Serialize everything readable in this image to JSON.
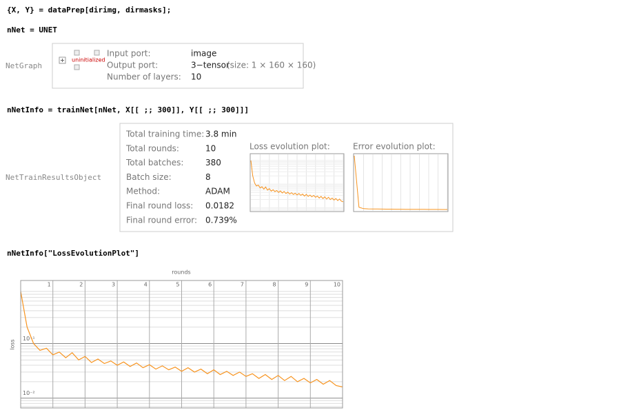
{
  "cells": [
    "{X, Y} = dataPrep[dirimg, dirmasks];",
    "nNet = UNET",
    "nNetInfo = trainNet[nNet, X[[ ;; 300]], Y[[ ;; 300]]]",
    "nNetInfo[\"LossEvolutionPlot\"]"
  ],
  "netgraph": {
    "head": "NetGraph",
    "badge": "uninitialized",
    "rows": [
      [
        "Input port:",
        "image"
      ],
      [
        "Output port:",
        "3−tensor",
        "(size: 1 × 160 × 160)"
      ],
      [
        "Number of layers:",
        "10"
      ]
    ]
  },
  "train_results": {
    "head": "NetTrainResultsObject",
    "rows": [
      [
        "Total training time:",
        "3.8 min"
      ],
      [
        "Total rounds:",
        "10"
      ],
      [
        "Total batches:",
        "380"
      ],
      [
        "Batch size:",
        "8"
      ],
      [
        "Method:",
        "ADAM"
      ],
      [
        "Final round loss:",
        "0.0182"
      ],
      [
        "Final round error:",
        "0.739%"
      ]
    ],
    "loss_plot_title": "Loss evolution plot:",
    "error_plot_title": "Error evolution plot:"
  },
  "chart_data": [
    {
      "type": "line",
      "x_label": "rounds",
      "y_label": "loss",
      "color": "#f7931e",
      "log_y": true,
      "grid": true,
      "x": [
        0,
        0.2,
        0.4,
        0.6,
        0.8,
        1,
        1.2,
        1.4,
        1.6,
        1.8,
        2,
        2.2,
        2.4,
        2.6,
        2.8,
        3,
        3.2,
        3.4,
        3.6,
        3.8,
        4,
        4.2,
        4.4,
        4.6,
        4.8,
        5,
        5.2,
        5.4,
        5.6,
        5.8,
        6,
        6.2,
        6.4,
        6.6,
        6.8,
        7,
        7.2,
        7.4,
        7.6,
        7.8,
        8,
        8.2,
        8.4,
        8.6,
        8.8,
        9,
        9.2,
        9.4,
        9.6,
        9.8,
        10
      ],
      "values": [
        0.9,
        0.2,
        0.1,
        0.075,
        0.082,
        0.062,
        0.07,
        0.055,
        0.068,
        0.05,
        0.058,
        0.045,
        0.052,
        0.043,
        0.048,
        0.04,
        0.046,
        0.038,
        0.044,
        0.036,
        0.041,
        0.034,
        0.039,
        0.033,
        0.037,
        0.031,
        0.036,
        0.03,
        0.034,
        0.028,
        0.033,
        0.027,
        0.031,
        0.026,
        0.03,
        0.025,
        0.028,
        0.023,
        0.027,
        0.022,
        0.026,
        0.021,
        0.025,
        0.02,
        0.023,
        0.019,
        0.022,
        0.018,
        0.021,
        0.017,
        0.016
      ],
      "xlim": [
        0,
        10
      ],
      "xticks": [
        1,
        2,
        3,
        4,
        5,
        6,
        7,
        8,
        9,
        10
      ],
      "ylim": [
        0.0066,
        1.43
      ],
      "yticks": [
        {
          "value": 0.01,
          "label": "10⁻²"
        },
        {
          "value": 0.1,
          "label": "10⁻¹"
        }
      ],
      "minor_yticks": [
        0.007,
        0.008,
        0.009,
        0.02,
        0.03,
        0.04,
        0.05,
        0.06,
        0.07,
        0.08,
        0.09,
        0.2,
        0.3,
        0.4,
        0.5,
        0.6,
        0.7,
        0.8,
        0.9
      ]
    },
    {
      "type": "line",
      "color": "#f7931e",
      "x": [
        0,
        0.5,
        1,
        1.5,
        2,
        2.5,
        3,
        3.5,
        4,
        4.5,
        5,
        5.5,
        6,
        6.5,
        7,
        7.5,
        8,
        8.5,
        9,
        9.5,
        10
      ],
      "values": [
        0.3,
        0.02,
        0.012,
        0.011,
        0.0105,
        0.01,
        0.0098,
        0.0095,
        0.0093,
        0.009,
        0.0089,
        0.0087,
        0.0085,
        0.0084,
        0.0082,
        0.0081,
        0.008,
        0.0078,
        0.0077,
        0.0075,
        0.0074
      ],
      "xlim": [
        0,
        10
      ],
      "ylim": [
        0,
        0.3
      ]
    }
  ]
}
